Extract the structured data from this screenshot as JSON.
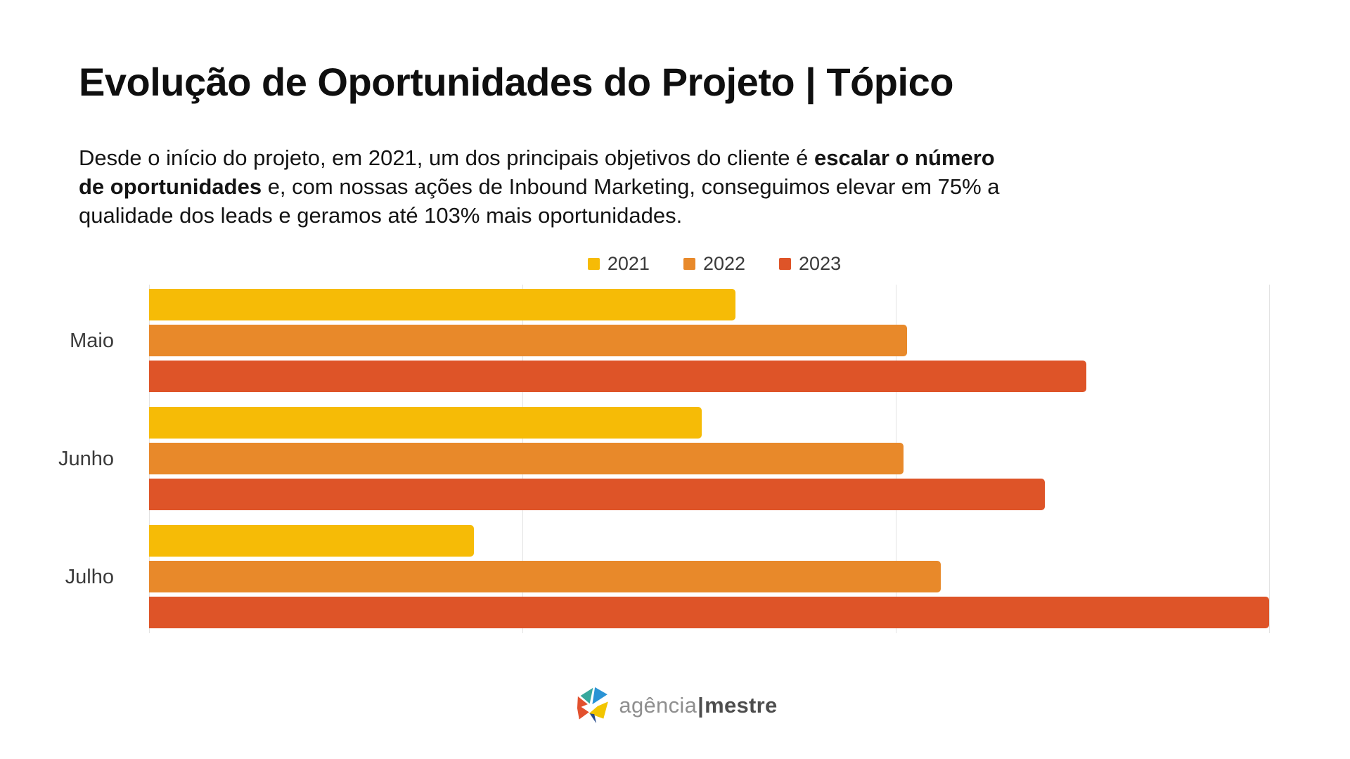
{
  "slide": {
    "title": "Evolução de Oportunidades do Projeto | Tópico",
    "intro_lines": [
      [
        {
          "t": "Desde o início do projeto, em 2021, um dos principais objetivos do cliente é ",
          "b": false
        },
        {
          "t": "escalar o número",
          "b": true
        }
      ],
      [
        {
          "t": "de oportunidades",
          "b": true
        },
        {
          "t": " e, com nossas ações de Inbound Marketing, conseguimos elevar em 75% a",
          "b": false
        }
      ],
      [
        {
          "t": "qualidade dos leads e geramos até 103% mais oportunidades.",
          "b": false
        }
      ]
    ]
  },
  "chart_data": {
    "type": "bar",
    "orientation": "horizontal",
    "title": "",
    "xlabel": "",
    "ylabel": "",
    "categories": [
      "Maio",
      "Junho",
      "Julho"
    ],
    "series": [
      {
        "name": "2021",
        "color": "#F6BB06",
        "values": [
          1.57,
          1.48,
          0.87
        ]
      },
      {
        "name": "2022",
        "color": "#E8892A",
        "values": [
          2.03,
          2.02,
          2.12
        ]
      },
      {
        "name": "2023",
        "color": "#DE5428",
        "values": [
          2.51,
          2.4,
          3.0
        ]
      }
    ],
    "xlim": [
      0,
      3
    ],
    "gridline_values": [
      0,
      1,
      2,
      3
    ],
    "grid": "vertical-only",
    "axis_tick_labels_visible": false,
    "value_units": "relative units (gridline spacing = 1; chart shows no numeric axis labels)",
    "legend_position": "top-center",
    "legend_labels": [
      "2021",
      "2022",
      "2023"
    ]
  },
  "footer": {
    "logo_text_left": "agência",
    "logo_divider": "|",
    "logo_text_right": "mestre"
  },
  "colors": {
    "background": "#FFFFFF",
    "title_text": "#0F0F0F",
    "body_text": "#141414",
    "axis_label_text": "#3A3A3A",
    "gridline": "#E3E3E3",
    "series_2021": "#F6BB06",
    "series_2022": "#E8892A",
    "series_2023": "#DE5428",
    "logo_gray": "#8F8F8F",
    "logo_dark": "#4D4D4D"
  }
}
